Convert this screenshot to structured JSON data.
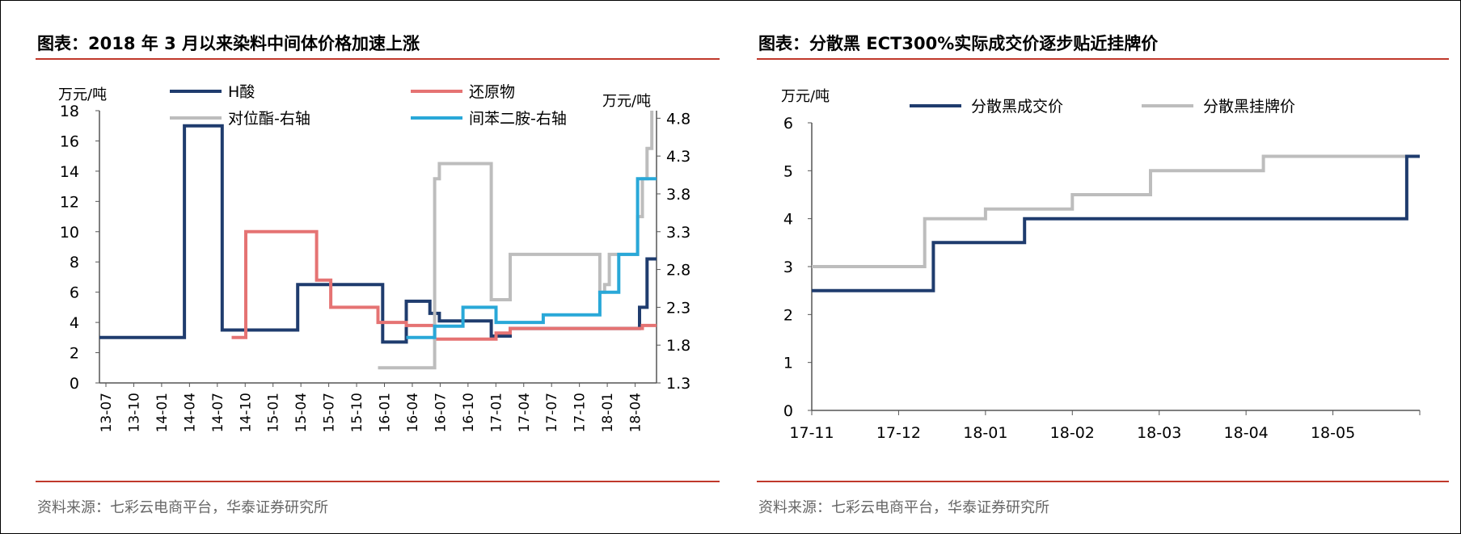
{
  "left": {
    "title": "图表：2018 年 3 月以来染料中间体价格加速上涨",
    "source": "资料来源：七彩云电商平台，华泰证券研究所"
  },
  "right": {
    "title": "图表：分散黑 ECT300%实际成交价逐步贴近挂牌价",
    "source": "资料来源：七彩云电商平台，华泰证券研究所"
  },
  "chart_data": [
    {
      "type": "line",
      "step": true,
      "title": "图表：2018 年 3 月以来染料中间体价格加速上涨",
      "ylabel": "万元/吨",
      "y2label": "万元/吨",
      "ylim": [
        0,
        18
      ],
      "y2lim": [
        1.3,
        4.9
      ],
      "yticks": [
        "0",
        "2",
        "4",
        "6",
        "8",
        "10",
        "12",
        "14",
        "16",
        "18"
      ],
      "y2ticks": [
        "1.3",
        "1.8",
        "2.3",
        "2.8",
        "3.3",
        "3.8",
        "4.3",
        "4.8"
      ],
      "xlim": [
        0,
        59
      ],
      "x_tick_labels": [
        "13-07",
        "13-10",
        "14-01",
        "14-04",
        "14-07",
        "14-10",
        "15-01",
        "15-04",
        "15-07",
        "15-10",
        "16-01",
        "16-04",
        "16-07",
        "16-10",
        "17-01",
        "17-04",
        "17-07",
        "17-10",
        "18-01",
        "18-04"
      ],
      "legend": [
        "H酸",
        "还原物",
        "对位酯-右轴",
        "间苯二胺-右轴"
      ],
      "series": [
        {
          "name": "H酸",
          "axis": "left",
          "color": "#1f3c6e",
          "points": [
            [
              0,
              3
            ],
            [
              9,
              3
            ],
            [
              9,
              17
            ],
            [
              13,
              17
            ],
            [
              13,
              3.5
            ],
            [
              21,
              3.5
            ],
            [
              21,
              6.5
            ],
            [
              30,
              6.5
            ],
            [
              30,
              2.7
            ],
            [
              32.5,
              2.7
            ],
            [
              32.5,
              5.4
            ],
            [
              35,
              5.4
            ],
            [
              35,
              4.6
            ],
            [
              36,
              4.6
            ],
            [
              36,
              4.1
            ],
            [
              41.5,
              4.1
            ],
            [
              41.5,
              3.1
            ],
            [
              43.5,
              3.1
            ],
            [
              43.5,
              3.6
            ],
            [
              57.2,
              3.6
            ],
            [
              57.2,
              5
            ],
            [
              58,
              5
            ],
            [
              58,
              8.2
            ],
            [
              59,
              8.2
            ]
          ]
        },
        {
          "name": "还原物",
          "axis": "left",
          "color": "#e57373",
          "points": [
            [
              14,
              3
            ],
            [
              15.5,
              3
            ],
            [
              15.5,
              10
            ],
            [
              23,
              10
            ],
            [
              23,
              6.8
            ],
            [
              24.5,
              6.8
            ],
            [
              24.5,
              5
            ],
            [
              29.5,
              5
            ],
            [
              29.5,
              4
            ],
            [
              32.5,
              4
            ],
            [
              32.5,
              3.8
            ],
            [
              35.5,
              3.8
            ],
            [
              35.5,
              2.9
            ],
            [
              42,
              2.9
            ],
            [
              42,
              3.3
            ],
            [
              43.5,
              3.3
            ],
            [
              43.5,
              3.6
            ],
            [
              57.5,
              3.6
            ],
            [
              57.5,
              3.8
            ],
            [
              59,
              3.8
            ]
          ]
        },
        {
          "name": "对位酯-右轴",
          "axis": "right",
          "color": "#bdbdbd",
          "points": [
            [
              29.5,
              1.5
            ],
            [
              35.5,
              1.5
            ],
            [
              35.5,
              4
            ],
            [
              36,
              4
            ],
            [
              36,
              4.2
            ],
            [
              41.5,
              4.2
            ],
            [
              41.5,
              2.4
            ],
            [
              43.5,
              2.4
            ],
            [
              43.5,
              3
            ],
            [
              53,
              3
            ],
            [
              53,
              2.5
            ],
            [
              53.5,
              2.5
            ],
            [
              53.5,
              2.6
            ],
            [
              54,
              2.6
            ],
            [
              54,
              3
            ],
            [
              57,
              3
            ],
            [
              57,
              3.5
            ],
            [
              57.5,
              3.5
            ],
            [
              57.5,
              4
            ],
            [
              58,
              4
            ],
            [
              58,
              4.4
            ],
            [
              58.5,
              4.4
            ],
            [
              58.5,
              4.9
            ]
          ]
        },
        {
          "name": "间苯二胺-右轴",
          "axis": "right",
          "color": "#29a8d8",
          "points": [
            [
              32.5,
              1.9
            ],
            [
              35.5,
              1.9
            ],
            [
              35.5,
              2.05
            ],
            [
              38.5,
              2.05
            ],
            [
              38.5,
              2.3
            ],
            [
              42,
              2.3
            ],
            [
              42,
              2.1
            ],
            [
              47,
              2.1
            ],
            [
              47,
              2.2
            ],
            [
              53,
              2.2
            ],
            [
              53,
              2.5
            ],
            [
              55,
              2.5
            ],
            [
              55,
              3
            ],
            [
              57,
              3
            ],
            [
              57,
              4
            ],
            [
              59,
              4
            ]
          ]
        }
      ]
    },
    {
      "type": "line",
      "step": true,
      "title": "图表：分散黑 ECT300%实际成交价逐步贴近挂牌价",
      "ylabel": "万元/吨",
      "ylim": [
        0,
        6
      ],
      "yticks": [
        "0",
        "1",
        "2",
        "3",
        "4",
        "5",
        "6"
      ],
      "xlim": [
        0,
        7
      ],
      "x_tick_labels": [
        "17-11",
        "17-12",
        "18-01",
        "18-02",
        "18-03",
        "18-04",
        "18-05"
      ],
      "legend": [
        "分散黑成交价",
        "分散黑挂牌价"
      ],
      "series": [
        {
          "name": "分散黑成交价",
          "color": "#1f3c6e",
          "points": [
            [
              0,
              2.5
            ],
            [
              1.4,
              2.5
            ],
            [
              1.4,
              3.5
            ],
            [
              2.45,
              3.5
            ],
            [
              2.45,
              4
            ],
            [
              6.85,
              4
            ],
            [
              6.85,
              5.3
            ],
            [
              7,
              5.3
            ]
          ]
        },
        {
          "name": "分散黑挂牌价",
          "color": "#bdbdbd",
          "points": [
            [
              0,
              3
            ],
            [
              1.3,
              3
            ],
            [
              1.3,
              4
            ],
            [
              2,
              4
            ],
            [
              2,
              4.2
            ],
            [
              3,
              4.2
            ],
            [
              3,
              4.5
            ],
            [
              3.9,
              4.5
            ],
            [
              3.9,
              5
            ],
            [
              5.2,
              5
            ],
            [
              5.2,
              5.3
            ],
            [
              7,
              5.3
            ]
          ]
        }
      ]
    }
  ]
}
